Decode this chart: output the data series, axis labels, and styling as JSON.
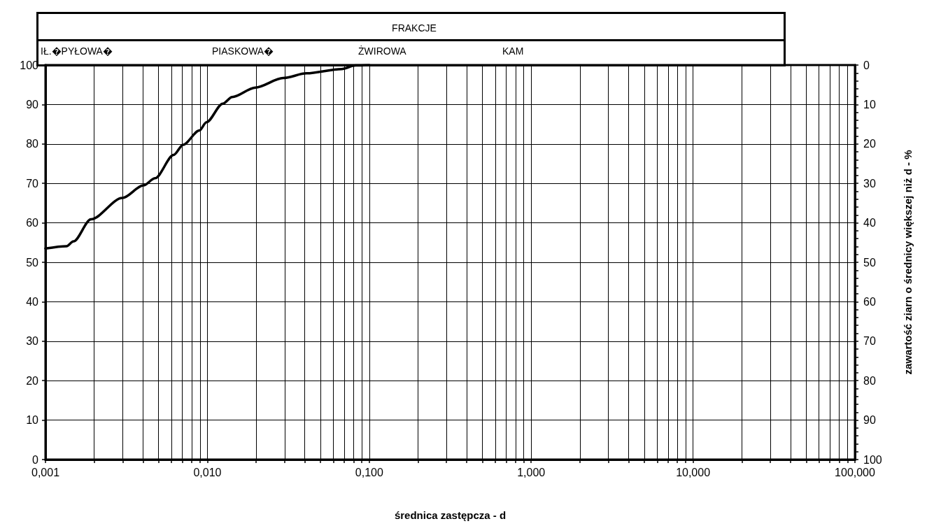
{
  "chart_data": {
    "type": "line",
    "title": "FRAKCJE",
    "annotations": [
      "IŁ.�PYŁOWA�",
      "PIASKOWA�",
      "ŻWIROWA",
      "KAM"
    ],
    "xlabel": "średnica zastępcza - d",
    "y2label": "zawartość ziarn o średnicy większej niż d - %",
    "log": "x",
    "grid": true,
    "marker": "none",
    "line_style": "solid",
    "xlim": [
      0.001,
      100
    ],
    "ylim": [
      0,
      100
    ],
    "y2lim": [
      100,
      0
    ],
    "xticks": [
      {
        "value": 0.001,
        "label": "0,001"
      },
      {
        "value": 0.002,
        "label": null
      },
      {
        "value": 0.003,
        "label": null
      },
      {
        "value": 0.004,
        "label": null
      },
      {
        "value": 0.005,
        "label": null
      },
      {
        "value": 0.006,
        "label": null
      },
      {
        "value": 0.007,
        "label": null
      },
      {
        "value": 0.008,
        "label": null
      },
      {
        "value": 0.009,
        "label": null
      },
      {
        "value": 0.01,
        "label": "0,010"
      },
      {
        "value": 0.02,
        "label": null
      },
      {
        "value": 0.03,
        "label": null
      },
      {
        "value": 0.04,
        "label": null
      },
      {
        "value": 0.05,
        "label": null
      },
      {
        "value": 0.06,
        "label": null
      },
      {
        "value": 0.07,
        "label": null
      },
      {
        "value": 0.08,
        "label": null
      },
      {
        "value": 0.09,
        "label": null
      },
      {
        "value": 0.1,
        "label": "0,100"
      },
      {
        "value": 0.2,
        "label": null
      },
      {
        "value": 0.3,
        "label": null
      },
      {
        "value": 0.4,
        "label": null
      },
      {
        "value": 0.5,
        "label": null
      },
      {
        "value": 0.6,
        "label": null
      },
      {
        "value": 0.7,
        "label": null
      },
      {
        "value": 0.8,
        "label": null
      },
      {
        "value": 0.9,
        "label": null
      },
      {
        "value": 1,
        "label": "1,000"
      },
      {
        "value": 2,
        "label": null
      },
      {
        "value": 3,
        "label": null
      },
      {
        "value": 4,
        "label": null
      },
      {
        "value": 5,
        "label": null
      },
      {
        "value": 6,
        "label": null
      },
      {
        "value": 7,
        "label": null
      },
      {
        "value": 8,
        "label": null
      },
      {
        "value": 9,
        "label": null
      },
      {
        "value": 10,
        "label": "10,000"
      },
      {
        "value": 20,
        "label": null
      },
      {
        "value": 30,
        "label": null
      },
      {
        "value": 40,
        "label": null
      },
      {
        "value": 50,
        "label": null
      },
      {
        "value": 60,
        "label": null
      },
      {
        "value": 70,
        "label": null
      },
      {
        "value": 80,
        "label": null
      },
      {
        "value": 90,
        "label": null
      },
      {
        "value": 100,
        "label": "100,000"
      }
    ],
    "yticks": [
      0,
      10,
      20,
      30,
      40,
      50,
      60,
      70,
      80,
      90,
      100
    ],
    "y2ticks": [
      0,
      {
        "value": 2,
        "label": null
      },
      {
        "value": 4,
        "label": null
      },
      {
        "value": 6,
        "label": null
      },
      {
        "value": 8,
        "label": null
      },
      10,
      {
        "value": 12,
        "label": null
      },
      {
        "value": 14,
        "label": null
      },
      {
        "value": 16,
        "label": null
      },
      {
        "value": 18,
        "label": null
      },
      20,
      {
        "value": 22,
        "label": null
      },
      {
        "value": 24,
        "label": null
      },
      {
        "value": 26,
        "label": null
      },
      {
        "value": 28,
        "label": null
      },
      30,
      {
        "value": 32,
        "label": null
      },
      {
        "value": 34,
        "label": null
      },
      {
        "value": 36,
        "label": null
      },
      {
        "value": 38,
        "label": null
      },
      40,
      {
        "value": 42,
        "label": null
      },
      {
        "value": 44,
        "label": null
      },
      {
        "value": 46,
        "label": null
      },
      {
        "value": 48,
        "label": null
      },
      50,
      {
        "value": 52,
        "label": null
      },
      {
        "value": 54,
        "label": null
      },
      {
        "value": 56,
        "label": null
      },
      {
        "value": 58,
        "label": null
      },
      60,
      {
        "value": 62,
        "label": null
      },
      {
        "value": 64,
        "label": null
      },
      {
        "value": 66,
        "label": null
      },
      {
        "value": 68,
        "label": null
      },
      70,
      {
        "value": 72,
        "label": null
      },
      {
        "value": 74,
        "label": null
      },
      {
        "value": 76,
        "label": null
      },
      {
        "value": 78,
        "label": null
      },
      80,
      {
        "value": 82,
        "label": null
      },
      {
        "value": 84,
        "label": null
      },
      {
        "value": 86,
        "label": null
      },
      {
        "value": 88,
        "label": null
      },
      90,
      {
        "value": 92,
        "label": null
      },
      {
        "value": 94,
        "label": null
      },
      {
        "value": 96,
        "label": null
      },
      {
        "value": 98,
        "label": null
      },
      100
    ],
    "series": [
      {
        "color": "#000000",
        "x": [
          0.001,
          0.00135,
          0.00149,
          0.00191,
          0.00298,
          0.00403,
          0.00475,
          0.00619,
          0.00708,
          0.00893,
          0.00987,
          0.01245,
          0.01422,
          0.0198,
          0.0294,
          0.041,
          0.0675,
          0.0823,
          0.1
        ],
        "values": [
          53.5,
          54.1,
          55.3,
          60.9,
          66.3,
          69.5,
          71.3,
          77.2,
          79.8,
          83.4,
          85.5,
          90.2,
          91.9,
          94.3,
          96.7,
          97.9,
          99.0,
          99.9,
          100
        ]
      }
    ]
  }
}
